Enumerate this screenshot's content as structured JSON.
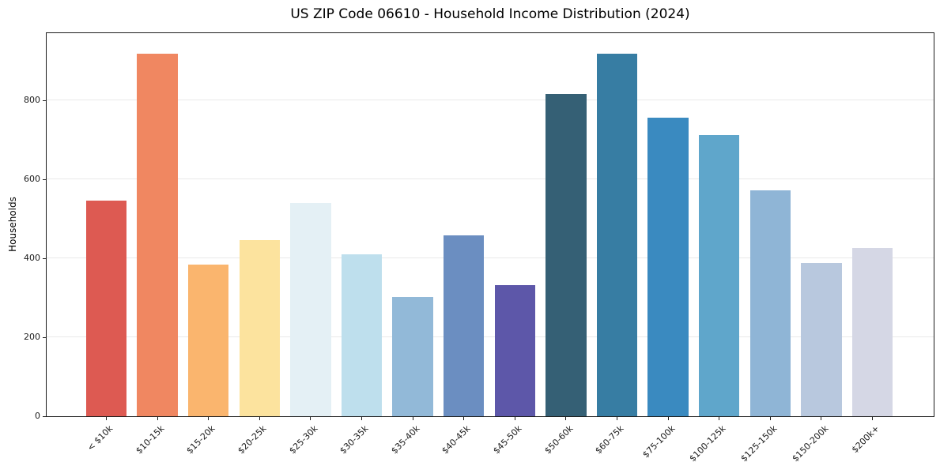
{
  "chart_data": {
    "type": "bar",
    "title": "US ZIP Code 06610 - Household Income Distribution (2024)",
    "xlabel": "",
    "ylabel": "Households",
    "categories": [
      "< $10k",
      "$10-15k",
      "$15-20k",
      "$20-25k",
      "$25-30k",
      "$30-35k",
      "$35-40k",
      "$40-45k",
      "$45-50k",
      "$50-60k",
      "$60-75k",
      "$75-100k",
      "$100-125k",
      "$125-150k",
      "$150-200k",
      "$200k+"
    ],
    "values": [
      546,
      919,
      385,
      447,
      540,
      410,
      302,
      459,
      333,
      816,
      919,
      757,
      712,
      572,
      389,
      427
    ],
    "bar_colors": [
      "#dd5a52",
      "#f08761",
      "#fab56e",
      "#fce39e",
      "#e4f0f5",
      "#bedfed",
      "#92b9d8",
      "#6b8ec1",
      "#5d57a9",
      "#356075",
      "#377da3",
      "#3a8ac0",
      "#5fa6cb",
      "#8fb5d6",
      "#b8c8de",
      "#d5d7e5"
    ],
    "yticks": [
      0,
      200,
      400,
      600,
      800
    ],
    "ylim": [
      0,
      970
    ],
    "grid": "horizontal",
    "grid_color": "#e9e9e9",
    "spine_color": "#1c1c1c",
    "background_color": "#ffffff",
    "legend": "none"
  }
}
